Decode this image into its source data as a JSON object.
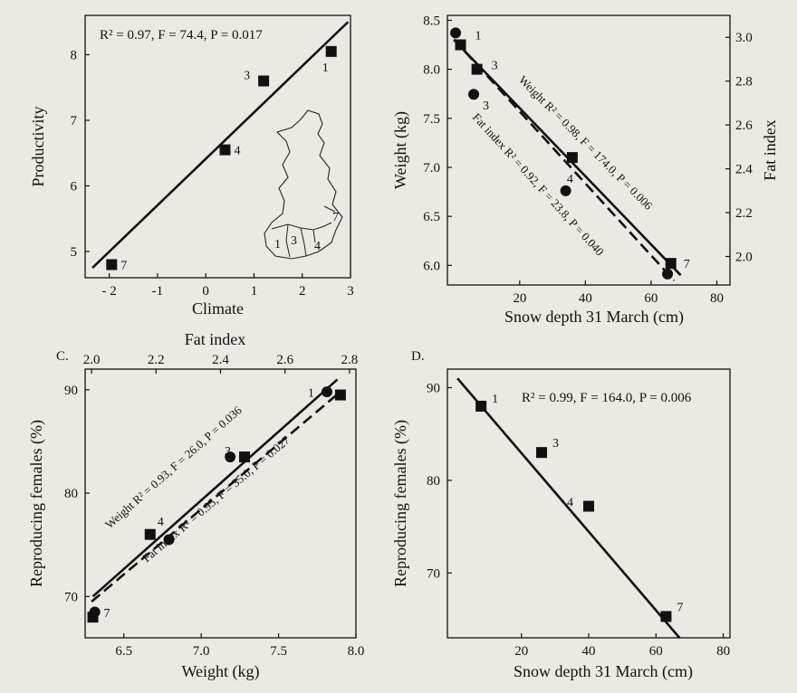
{
  "chart_data": [
    {
      "id": "A",
      "type": "scatter",
      "title": "",
      "xlabel": "Climate",
      "ylabel": "Productivity",
      "xlim": [
        -2.5,
        3
      ],
      "ylim": [
        4.6,
        8.6
      ],
      "xticks": [
        -2,
        -1,
        0,
        1,
        2,
        3
      ],
      "xtick_labels": [
        "- 2",
        "-1",
        "0",
        "1",
        "2",
        "3"
      ],
      "yticks": [
        5,
        6,
        7,
        8
      ],
      "stat": "R² = 0.97, F = 74.4, P = 0.017",
      "marker": "square",
      "points": [
        {
          "label": "1",
          "x": 2.6,
          "y": 8.05
        },
        {
          "label": "3",
          "x": 1.2,
          "y": 7.6
        },
        {
          "label": "4",
          "x": 0.4,
          "y": 6.55
        },
        {
          "label": "7",
          "x": -1.95,
          "y": 4.8
        }
      ],
      "fit": {
        "x": [
          -2.35,
          2.95
        ],
        "y": [
          4.75,
          8.5
        ]
      },
      "inset_map_labels": [
        "1",
        "3",
        "4",
        "7"
      ]
    },
    {
      "id": "B",
      "type": "scatter",
      "title": "",
      "xlabel": "Snow depth 31 March (cm)",
      "ylabel": "Weight (kg)",
      "y2label": "Fat index",
      "xlim": [
        -2,
        84
      ],
      "ylim": [
        5.8,
        8.55
      ],
      "y2lim": [
        1.87,
        3.1
      ],
      "xticks": [
        20,
        40,
        60,
        80
      ],
      "yticks": [
        6.0,
        6.5,
        7.0,
        7.5,
        8.0,
        8.5
      ],
      "ytick_labels": [
        "6.0",
        "6.5",
        "7.0",
        "7.5",
        "8.0",
        "8.5"
      ],
      "y2ticks": [
        2.0,
        2.2,
        2.4,
        2.6,
        2.8,
        3.0
      ],
      "y2tick_labels": [
        "2.0",
        "2.2",
        "2.4",
        "2.6",
        "2.8",
        "3.0"
      ],
      "series": [
        {
          "name": "Weight",
          "marker": "square",
          "line": "solid",
          "stat": "Weight R² = 0.98, F = 174.0, P = 0.006",
          "points": [
            {
              "label": "1",
              "x": 2,
              "y": 8.25
            },
            {
              "label": "3",
              "x": 7,
              "y": 8.0
            },
            {
              "label": "4",
              "x": 36,
              "y": 7.1
            },
            {
              "label": "7",
              "x": 66,
              "y": 6.02
            }
          ],
          "fit": {
            "x": [
              0,
              69
            ],
            "y": [
              8.3,
              5.9
            ]
          }
        },
        {
          "name": "Fat index",
          "marker": "circle",
          "line": "dashed",
          "stat": "Fat index R² = 0.92, F = 23.8, P = 0.040",
          "points": [
            {
              "label": "1",
              "x": 0.5,
              "y2": 3.02
            },
            {
              "label": "3",
              "x": 6,
              "y2": 2.74
            },
            {
              "label": "4",
              "x": 34,
              "y2": 2.3
            },
            {
              "label": "7",
              "x": 65,
              "y2": 1.92
            }
          ],
          "fit": {
            "x": [
              0,
              67
            ],
            "y2": [
              2.99,
              1.89
            ]
          }
        }
      ]
    },
    {
      "id": "C",
      "type": "scatter",
      "panel_label": "C.",
      "title": "",
      "xlabel": "Weight (kg)",
      "x2label": "Fat index",
      "ylabel": "Reproducing females (%)",
      "xlim": [
        6.25,
        8.0
      ],
      "x2lim": [
        1.98,
        2.82
      ],
      "ylim": [
        66,
        92
      ],
      "xticks": [
        6.5,
        7.0,
        7.5,
        8.0
      ],
      "xtick_labels": [
        "6.5",
        "7.0",
        "7.5",
        "8.0"
      ],
      "x2ticks": [
        2.0,
        2.2,
        2.4,
        2.6,
        2.8
      ],
      "x2tick_labels": [
        "2.0",
        "2.2",
        "2.4",
        "2.6",
        "2.8"
      ],
      "yticks": [
        70,
        80,
        90
      ],
      "series": [
        {
          "name": "Weight",
          "marker": "square",
          "line": "solid",
          "stat": "Weight R² = 0.93, F = 26.0, P = 0.036",
          "points": [
            {
              "label": "1",
              "x": 7.9,
              "y": 89.5
            },
            {
              "label": "3",
              "x": 7.28,
              "y": 83.5
            },
            {
              "label": "4",
              "x": 6.67,
              "y": 76.0
            },
            {
              "label": "7",
              "x": 6.3,
              "y": 68.0
            }
          ],
          "fit": {
            "x": [
              6.3,
              7.88
            ],
            "y": [
              70.0,
              91.0
            ]
          }
        },
        {
          "name": "Fat index",
          "marker": "circle",
          "line": "dashed",
          "stat": "Fat index R² = 0.95, F = 35.0, P = 0.027",
          "points": [
            {
              "label": "1",
              "x2": 2.73,
              "y": 89.8
            },
            {
              "label": "3",
              "x2": 2.43,
              "y": 83.5
            },
            {
              "label": "4",
              "x2": 2.24,
              "y": 75.5
            },
            {
              "label": "7",
              "x2": 2.01,
              "y": 68.5
            }
          ],
          "fit": {
            "x2": [
              2.0,
              2.76
            ],
            "y": [
              69.5,
              89.5
            ]
          }
        }
      ]
    },
    {
      "id": "D",
      "type": "scatter",
      "panel_label": "D.",
      "title": "",
      "xlabel": "Snow depth 31 March (cm)",
      "ylabel": "Reproducing females (%)",
      "xlim": [
        -2,
        82
      ],
      "ylim": [
        63,
        92
      ],
      "xticks": [
        20,
        40,
        60,
        80
      ],
      "yticks": [
        70,
        80,
        90
      ],
      "stat": "R² = 0.99, F = 164.0, P = 0.006",
      "marker": "square",
      "points": [
        {
          "label": "1",
          "x": 8,
          "y": 88.0
        },
        {
          "label": "3",
          "x": 26,
          "y": 83.0
        },
        {
          "label": "4",
          "x": 40,
          "y": 77.2
        },
        {
          "label": "7",
          "x": 63,
          "y": 65.3
        }
      ],
      "fit": {
        "x": [
          1,
          67
        ],
        "y": [
          91.0,
          63.0
        ]
      }
    }
  ]
}
